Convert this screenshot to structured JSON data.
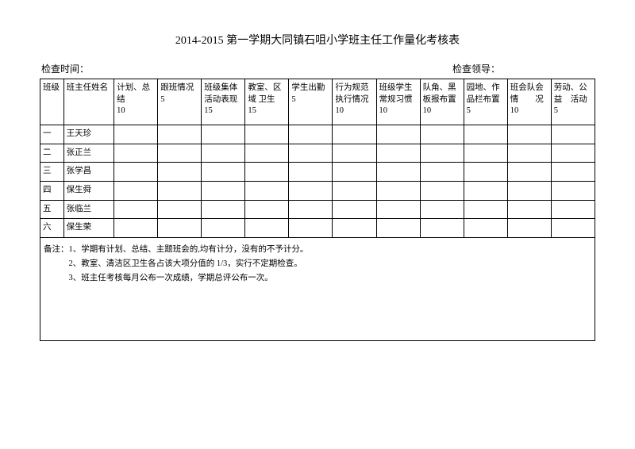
{
  "title": "2014-2015 第一学期大同镇石咀小学班主任工作量化考核表",
  "header": {
    "left": "检查时间：",
    "right": "检查领导："
  },
  "columns": [
    {
      "label": "班级",
      "width": "col-class"
    },
    {
      "label": "班主任姓名",
      "width": "col-name"
    },
    {
      "label": "计划、总结\n10",
      "width": "col-score"
    },
    {
      "label": "跟班情况\n5",
      "width": "col-score"
    },
    {
      "label": "班级集体活动表现\n15",
      "width": "col-score"
    },
    {
      "label": "教室、区域 卫生\n15",
      "width": "col-score"
    },
    {
      "label": "学生出勤\n5",
      "width": "col-score"
    },
    {
      "label": "行为规范执行情况\n10",
      "width": "col-score"
    },
    {
      "label": "班级学生常规习惯\n10",
      "width": "col-score"
    },
    {
      "label": "队角、黑板报布置\n10",
      "width": "col-score"
    },
    {
      "label": "园地、作品栏布置\n5",
      "width": "col-score"
    },
    {
      "label": "班会队会情　　况\n10",
      "width": "col-score"
    },
    {
      "label": "劳动、公益　活动\n5",
      "width": "col-score"
    }
  ],
  "rows": [
    {
      "class": "一",
      "name": "王天珍"
    },
    {
      "class": "二",
      "name": "张正兰"
    },
    {
      "class": "三",
      "name": "张学昌"
    },
    {
      "class": "四",
      "name": "保生舜"
    },
    {
      "class": "五",
      "name": "张临兰"
    },
    {
      "class": "六",
      "name": "保生荣"
    }
  ],
  "notes": "备注：1、学期有计划、总结、主题班会的,均有计分，没有的不予计分。\n　　　2、教室、清洁区卫生各占该大项分值的 1/3，实行不定期检查。\n　　　3、班主任考核每月公布一次成绩，学期总评公布一次。"
}
